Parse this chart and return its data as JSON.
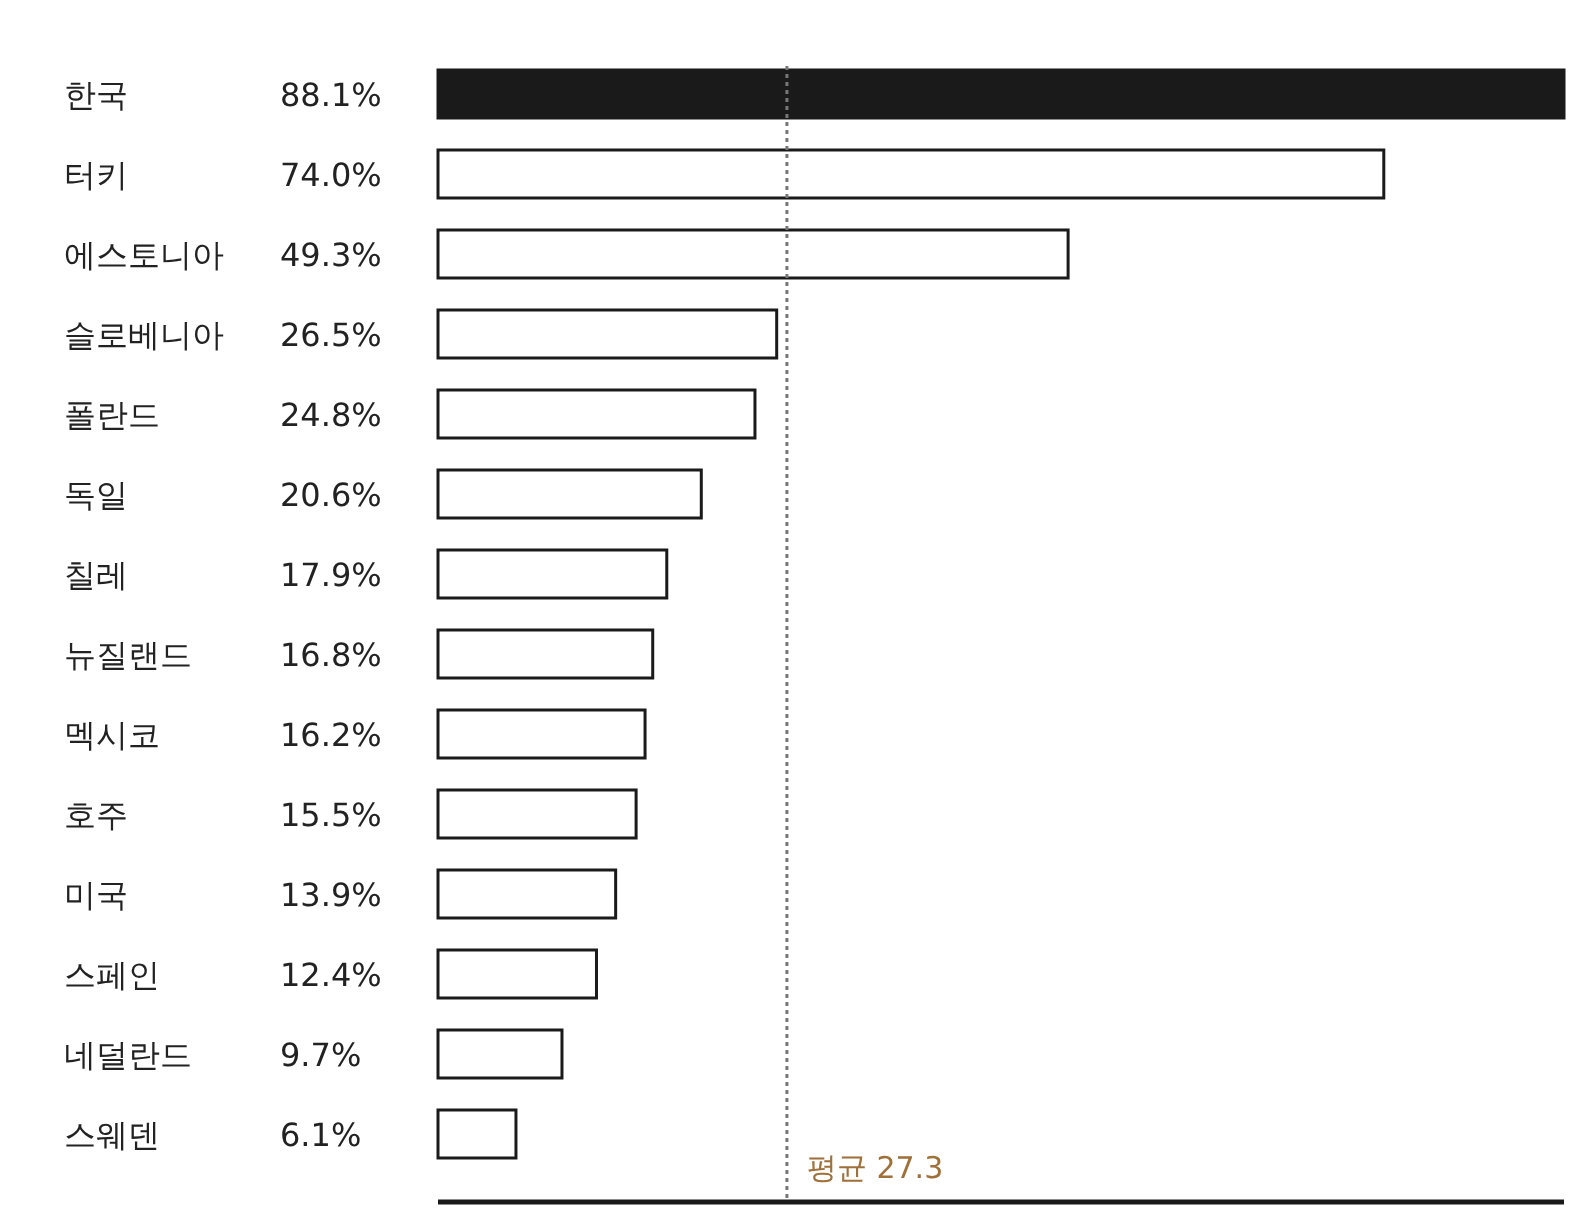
{
  "chart_data": {
    "type": "bar",
    "orientation": "horizontal",
    "categories": [
      "한국",
      "터키",
      "에스토니아",
      "슬로베니아",
      "폴란드",
      "독일",
      "칠레",
      "뉴질랜드",
      "멕시코",
      "호주",
      "미국",
      "스페인",
      "네덜란드",
      "스웨덴"
    ],
    "values": [
      88.1,
      74.0,
      49.3,
      26.5,
      24.8,
      20.6,
      17.9,
      16.8,
      16.2,
      15.5,
      13.9,
      12.4,
      9.7,
      6.1
    ],
    "value_labels": [
      "88.1%",
      "74.0%",
      "49.3%",
      "26.5%",
      "24.8%",
      "20.6%",
      "17.9%",
      "16.8%",
      "16.2%",
      "15.5%",
      "13.9%",
      "12.4%",
      "9.7%",
      "6.1%"
    ],
    "colors": [
      "#1a1a1a",
      "#ffffff",
      "#ffffff",
      "#ffffff",
      "#ffffff",
      "#ffffff",
      "#ffffff",
      "#ffffff",
      "#ffffff",
      "#ffffff",
      "#ffffff",
      "#ffffff",
      "#ffffff",
      "#ffffff"
    ],
    "ref_lines": [
      {
        "axis": "x",
        "value": 27.3,
        "label": "평균 27.3",
        "color": "#777777",
        "line_style": "dotted"
      }
    ]
  }
}
